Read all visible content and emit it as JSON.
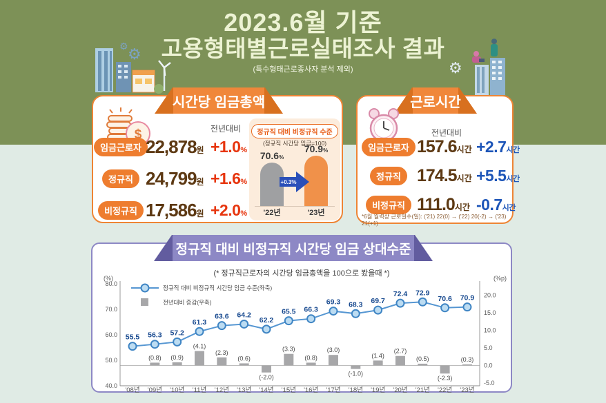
{
  "palette": {
    "bg_olive": "#7d9157",
    "bg_mint": "#e0ebe5",
    "accent_orange": "#ee8434",
    "accent_purple": "#8d88c5",
    "positive_red": "#e7350e",
    "change_blue": "#1d55b8",
    "value_brown": "#5d3913"
  },
  "header": {
    "title_line1": "2023.6월 기준",
    "title_line2": "고용형태별근로실태조사 결과",
    "subtitle": "(특수형태근로종사자 분석 제외)"
  },
  "wage_panel": {
    "ribbon": "시간당 임금총액",
    "col_header": "전년대비",
    "rows": [
      {
        "label": "임금근로자",
        "value": "22,878",
        "unit": "원",
        "change": "+1.0",
        "change_unit": "%"
      },
      {
        "label": "정규직",
        "value": "24,799",
        "unit": "원",
        "change": "+1.6",
        "change_unit": "%"
      },
      {
        "label": "비정규직",
        "value": "17,586",
        "unit": "원",
        "change": "+2.0",
        "change_unit": "%"
      }
    ],
    "mini_chart": {
      "title": "정규직 대비 비정규직 수준",
      "subtitle": "(정규직 시간당 임금=100)",
      "bars": [
        {
          "year": "'22년",
          "value": 70.6,
          "unit": "%"
        },
        {
          "year": "'23년",
          "value": 70.9,
          "unit": "%"
        }
      ],
      "arrow_label": "+0.3%"
    }
  },
  "hours_panel": {
    "ribbon": "근로시간",
    "col_header": "전년대비",
    "rows": [
      {
        "label": "임금근로자",
        "value": "157.6",
        "unit": "시간",
        "change": "+2.7",
        "change_unit": "시간"
      },
      {
        "label": "정규직",
        "value": "174.5",
        "unit": "시간",
        "change": "+5.5",
        "change_unit": "시간"
      },
      {
        "label": "비정규직",
        "value": "111.0",
        "unit": "시간",
        "change": "-0.7",
        "change_unit": "시간"
      }
    ],
    "footnote": "*6월 월력상 근로일수(일): ('21) 22(0) → ('22) 20(-2) → ('23) 21(+1)"
  },
  "relative_wage_panel": {
    "banner": "정규직 대비 비정규직 시간당 임금 상대수준",
    "subtitle": "(* 정규직근로자의 시간당 임금총액을 100으로 봤을때 *)"
  },
  "chart_data": {
    "type": "line+bar",
    "title": "정규직 대비 비정규직 시간당 임금 상대수준",
    "categories": [
      "'08년",
      "'09년",
      "'10년",
      "'11년",
      "'12년",
      "'13년",
      "'14년",
      "'15년",
      "'16년",
      "'17년",
      "'18년",
      "'19년",
      "'20년",
      "'21년",
      "'22년",
      "'23년"
    ],
    "series": [
      {
        "name": "정규직 대비 비정규직 시간당 임금 수준(좌축)",
        "type": "line",
        "axis": "left",
        "values": [
          55.5,
          56.3,
          57.2,
          61.3,
          63.6,
          64.2,
          62.2,
          65.5,
          66.3,
          69.3,
          68.3,
          69.7,
          72.4,
          72.9,
          70.6,
          70.9
        ]
      },
      {
        "name": "전년대비 증감(우축)",
        "type": "bar",
        "axis": "right",
        "values": [
          null,
          0.8,
          0.9,
          4.1,
          2.3,
          0.6,
          -2.0,
          3.3,
          0.8,
          3.0,
          -1.0,
          1.4,
          2.7,
          0.5,
          -2.3,
          0.3
        ]
      }
    ],
    "left_axis": {
      "unit": "(%)",
      "ticks": [
        80.0,
        70.0,
        60.0,
        50.0,
        40.0
      ],
      "range": [
        40,
        80
      ]
    },
    "right_axis": {
      "unit": "(%p)",
      "ticks": [
        20.0,
        15.0,
        10.0,
        5.0,
        0.0,
        -5.0
      ],
      "range": [
        -5,
        20
      ]
    },
    "grid": false,
    "legend_position": "top-left",
    "colors": {
      "line": "#5596d2",
      "marker_fill": "#bcdcf2",
      "marker_stroke": "#3f85c4",
      "bar": "#a7a7a9",
      "point_label": "#17498f",
      "bar_label": "#4a4a4a",
      "axis": "#9a9a9a",
      "tick_text": "#5a5a5a"
    }
  }
}
